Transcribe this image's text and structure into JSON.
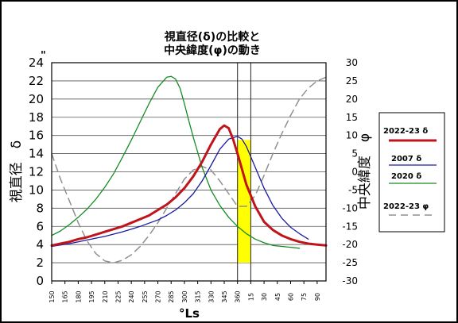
{
  "chart_data": {
    "type": "line",
    "title_lines": [
      "視直径(δ)の比較と",
      "中央緯度(φ)の動き"
    ],
    "ylabel_left": "視直径　δ",
    "ylabel_right": "中央緯度　φ",
    "xlabel": "°Ls",
    "left_unit": "\"",
    "left_axis": {
      "min": 0,
      "max": 24,
      "ticks": [
        "0",
        "2",
        "4",
        "6",
        "8",
        "10",
        "12",
        "14",
        "16",
        "18",
        "20",
        "22",
        "24"
      ]
    },
    "right_axis": {
      "min": -30,
      "max": 30,
      "ticks": [
        "-30",
        "-25",
        "-20",
        "-15",
        "-10",
        "-5",
        "0",
        "5",
        "10",
        "15",
        "20",
        "25",
        "30"
      ]
    },
    "x_axis": {
      "min": 150,
      "max": 460,
      "ticks": [
        "150",
        "165",
        "180",
        "195",
        "210",
        "225",
        "240",
        "255",
        "270",
        "285",
        "300",
        "315",
        "330",
        "345",
        "360",
        "15",
        "30",
        "45",
        "60",
        "75",
        "90"
      ],
      "tick_positions": [
        150,
        165,
        180,
        195,
        210,
        225,
        240,
        255,
        270,
        285,
        300,
        315,
        330,
        345,
        360,
        375,
        390,
        405,
        420,
        435,
        450
      ]
    },
    "grid": true,
    "legend_position": "right",
    "highlight": {
      "x_from": 360,
      "x_to": 375,
      "y_from": 2,
      "y_to": 15.5,
      "color": "#ffff00"
    },
    "vertical_lines": [
      360,
      375
    ],
    "series": [
      {
        "name": "2022-23 δ",
        "axis": "left",
        "color": "#c0141c",
        "width": 3,
        "dash": "",
        "x": [
          150,
          160,
          170,
          180,
          190,
          200,
          210,
          220,
          230,
          240,
          250,
          260,
          270,
          280,
          290,
          300,
          310,
          320,
          330,
          340,
          345,
          350,
          355,
          360,
          365,
          370,
          380,
          390,
          400,
          410,
          420,
          430,
          440,
          450,
          460
        ],
        "y": [
          3.9,
          4.1,
          4.3,
          4.6,
          4.8,
          5.1,
          5.4,
          5.7,
          6.0,
          6.4,
          6.8,
          7.2,
          7.8,
          8.4,
          9.2,
          10.2,
          11.5,
          13.1,
          15.0,
          16.7,
          17.1,
          16.8,
          15.6,
          14.0,
          12.3,
          10.6,
          8.2,
          6.5,
          5.6,
          5.0,
          4.6,
          4.3,
          4.1,
          4.0,
          3.9
        ]
      },
      {
        "name": "2007 δ",
        "axis": "left",
        "color": "#1a1aa0",
        "width": 1.3,
        "dash": "",
        "x": [
          150,
          160,
          170,
          180,
          190,
          200,
          210,
          220,
          230,
          240,
          250,
          260,
          270,
          280,
          290,
          300,
          310,
          320,
          330,
          340,
          350,
          360,
          365,
          370,
          380,
          390,
          400,
          410,
          420,
          430,
          440
        ],
        "y": [
          3.8,
          3.95,
          4.1,
          4.3,
          4.5,
          4.7,
          4.9,
          5.15,
          5.4,
          5.7,
          6.0,
          6.35,
          6.7,
          7.2,
          7.8,
          8.6,
          9.6,
          11.0,
          12.7,
          14.5,
          15.6,
          15.9,
          15.6,
          14.8,
          12.5,
          10.2,
          8.3,
          6.9,
          5.9,
          5.2,
          4.6
        ]
      },
      {
        "name": "2020 δ",
        "axis": "left",
        "color": "#158c22",
        "width": 1.3,
        "dash": "",
        "x": [
          150,
          160,
          170,
          180,
          190,
          200,
          210,
          220,
          230,
          240,
          250,
          260,
          270,
          280,
          285,
          290,
          295,
          300,
          305,
          310,
          320,
          330,
          340,
          350,
          360,
          370,
          380,
          390,
          400,
          410,
          420,
          430
        ],
        "y": [
          5.0,
          5.5,
          6.2,
          7.0,
          7.9,
          9.0,
          10.3,
          11.8,
          13.6,
          15.5,
          17.5,
          19.5,
          21.3,
          22.4,
          22.5,
          22.2,
          21.2,
          19.5,
          17.6,
          15.8,
          12.5,
          10.0,
          8.3,
          7.0,
          6.0,
          5.2,
          4.6,
          4.2,
          3.9,
          3.8,
          3.7,
          3.6
        ]
      },
      {
        "name": "2022-23 φ",
        "axis": "right",
        "color": "#909090",
        "width": 1.5,
        "dash": "9,6",
        "x": [
          150,
          160,
          170,
          180,
          190,
          200,
          210,
          220,
          230,
          240,
          250,
          260,
          270,
          280,
          290,
          300,
          310,
          320,
          330,
          340,
          350,
          360,
          370,
          380,
          390,
          400,
          410,
          420,
          430,
          440,
          450,
          460
        ],
        "y": [
          5,
          -2,
          -8,
          -14,
          -19,
          -22.5,
          -24.5,
          -25,
          -24.3,
          -22.8,
          -20.5,
          -17.5,
          -14,
          -10,
          -6,
          -2,
          0.5,
          1.5,
          0.5,
          -2.5,
          -6,
          -9.5,
          -9.5,
          -6.5,
          -1,
          5,
          10.5,
          15.5,
          20,
          23,
          25,
          26
        ]
      }
    ]
  }
}
